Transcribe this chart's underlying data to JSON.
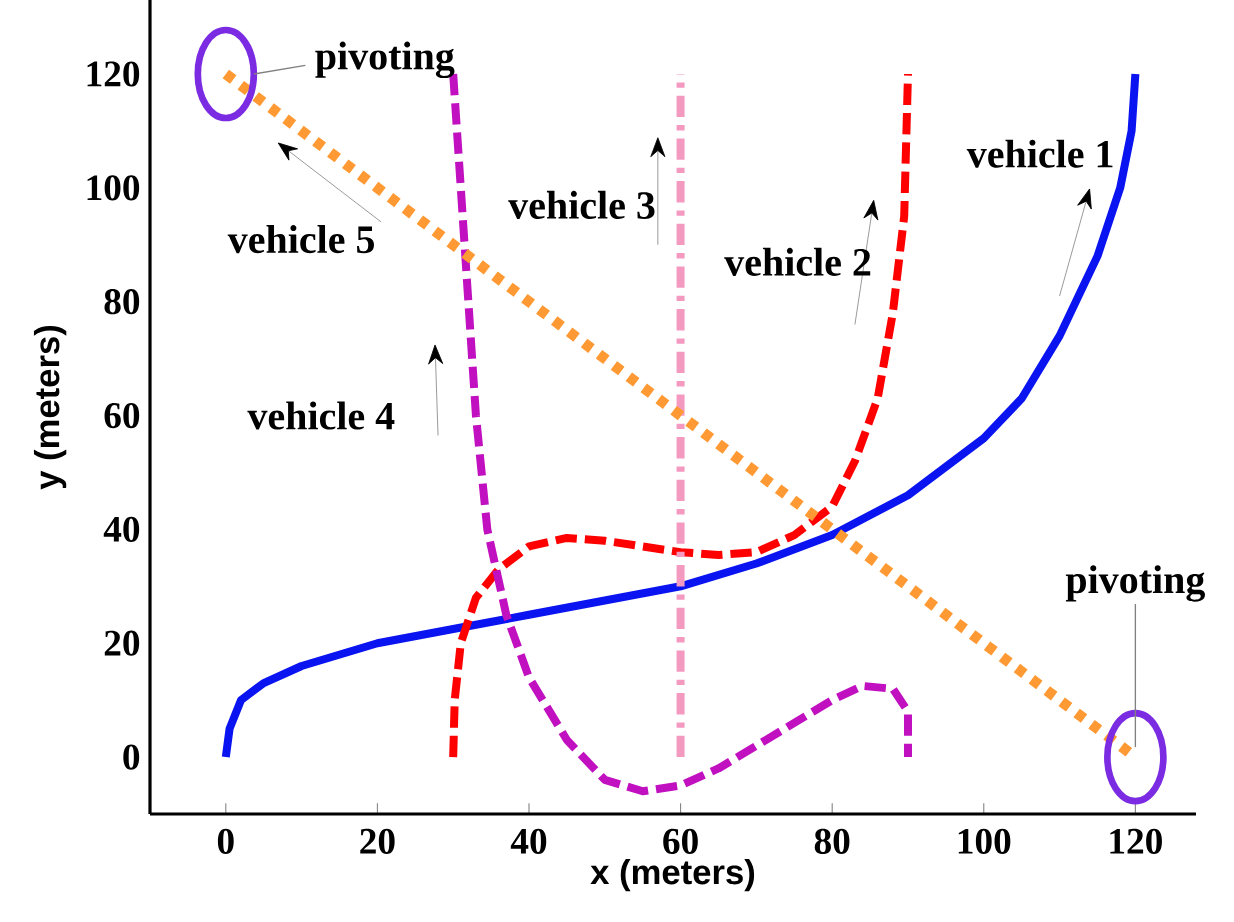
{
  "chart_data": {
    "type": "line",
    "xlabel": "x (meters)",
    "ylabel": "y (meters)",
    "xlim": [
      -10,
      128
    ],
    "ylim": [
      -10,
      133
    ],
    "xticks": [
      0,
      20,
      40,
      60,
      80,
      100,
      120
    ],
    "yticks": [
      0,
      20,
      40,
      60,
      80,
      100,
      120
    ],
    "grid": false,
    "marker": "none",
    "series": [
      {
        "name": "vehicle 1",
        "color": "#0a14f0",
        "line_style": "solid",
        "x": [
          0,
          0.5,
          2,
          5,
          10,
          20,
          30,
          40,
          50,
          60,
          70,
          80,
          90,
          100,
          105,
          110,
          115,
          118,
          119.5,
          120
        ],
        "values": [
          0,
          5,
          10,
          13,
          16,
          20,
          22.5,
          25,
          27.5,
          30,
          34,
          39,
          46,
          56,
          63,
          74,
          88,
          100,
          110,
          120
        ]
      },
      {
        "name": "vehicle 2",
        "color": "#ff0000",
        "line_style": "dashed",
        "x": [
          30,
          30.2,
          31,
          33,
          36,
          40,
          45,
          50,
          55,
          60,
          65,
          70,
          75,
          80,
          83,
          86,
          88,
          89.5,
          90
        ],
        "values": [
          0,
          10,
          20,
          28,
          33,
          37,
          38.5,
          38,
          37,
          36,
          35.5,
          36,
          39,
          44,
          52,
          63,
          78,
          95,
          120
        ]
      },
      {
        "name": "vehicle 3",
        "color": "#f49ac1",
        "line_style": "dashdot",
        "x": [
          60,
          60
        ],
        "values": [
          0,
          120
        ]
      },
      {
        "name": "vehicle 4",
        "color": "#c010c0",
        "line_style": "dashed",
        "x": [
          30,
          31,
          32,
          33,
          34.5,
          37,
          40,
          45,
          50,
          55,
          60,
          65,
          70,
          75,
          80,
          84,
          88,
          90,
          90
        ],
        "values": [
          120,
          100,
          80,
          60,
          40,
          25,
          14,
          3,
          -4,
          -6,
          -5,
          -2,
          2,
          6,
          10,
          12.5,
          12,
          8,
          0
        ]
      },
      {
        "name": "vehicle 5",
        "color": "#ff9933",
        "line_style": "dotted",
        "x": [
          0,
          120
        ],
        "values": [
          120,
          0
        ]
      }
    ],
    "annotations": [
      {
        "text": "pivoting",
        "x": 0,
        "y": 120
      },
      {
        "text": "pivoting",
        "x": 120,
        "y": 0
      }
    ]
  }
}
